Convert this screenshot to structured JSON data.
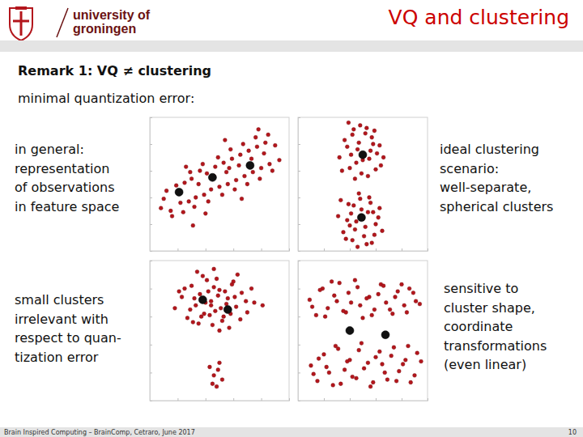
{
  "slide": {
    "logo_lines": [
      "university of",
      "groningen"
    ],
    "title": "VQ and clustering",
    "remark": "Remark 1: VQ ≠ clustering",
    "subtitle": "minimal quantization error:",
    "footer": "Brain Inspired Computing – BrainComp, Cetraro, June 2017",
    "page": 10
  },
  "chart_data": [
    {
      "type": "scatter",
      "annotation": [
        "in general:",
        "representation",
        "of observations",
        "in feature space"
      ],
      "xlim": [
        0,
        10
      ],
      "ylim": [
        0,
        10
      ],
      "xticks": [
        0,
        2,
        4,
        6,
        8,
        10
      ],
      "yticks": [
        0,
        2,
        4,
        6,
        8,
        10
      ],
      "tick_labels": false,
      "series": [
        {
          "color": "#b3161c",
          "marker": "circle",
          "x": [
            0.8,
            1.2,
            1.5,
            1.9,
            2.2,
            2.5,
            2.8,
            3.0,
            3.3,
            3.6,
            3.9,
            4.1,
            4.4,
            4.7,
            5.0,
            5.3,
            5.6,
            5.9,
            6.2,
            6.5,
            6.8,
            7.1,
            7.4,
            7.7,
            8.0,
            8.3,
            8.6,
            9.0,
            9.3,
            1.0,
            1.6,
            2.0,
            2.4,
            2.9,
            3.2,
            3.5,
            3.8,
            4.2,
            4.6,
            4.9,
            5.2,
            5.5,
            5.8,
            6.1,
            6.4,
            6.7,
            7.0,
            7.3,
            7.6,
            7.9,
            8.2,
            8.5,
            8.8,
            2.6,
            4.0,
            5.4,
            6.6,
            3.1,
            7.8,
            5.7
          ],
          "values": [
            3.2,
            4.5,
            3.0,
            4.9,
            3.6,
            5.1,
            3.7,
            5.4,
            4.0,
            6.0,
            4.2,
            5.8,
            4.6,
            6.3,
            4.8,
            6.6,
            5.0,
            6.9,
            5.3,
            7.2,
            5.6,
            7.5,
            5.9,
            7.8,
            6.2,
            8.1,
            6.5,
            7.9,
            6.8,
            3.9,
            2.6,
            4.4,
            2.9,
            5.9,
            3.3,
            5.0,
            6.5,
            3.7,
            5.6,
            7.0,
            4.2,
            5.9,
            7.6,
            4.6,
            6.4,
            8.0,
            5.0,
            6.9,
            8.5,
            5.4,
            7.3,
            8.7,
            6.0,
            6.3,
            2.8,
            8.3,
            3.9,
            1.9,
            9.1,
            6.2
          ]
        },
        {
          "color": "#111111",
          "marker": "circle",
          "x": [
            2.1,
            4.5,
            7.2
          ],
          "values": [
            4.4,
            5.5,
            6.4
          ]
        }
      ]
    },
    {
      "type": "scatter",
      "annotation": [
        "ideal clustering",
        "scenario:",
        "well-separate,",
        "spherical clusters"
      ],
      "xlim": [
        0,
        10
      ],
      "ylim": [
        0,
        10
      ],
      "xticks": [
        0,
        2,
        4,
        6,
        8,
        10
      ],
      "yticks": [
        0,
        2,
        4,
        6,
        8,
        10
      ],
      "tick_labels": false,
      "series": [
        {
          "color": "#b3161c",
          "marker": "circle",
          "x": [
            3.2,
            3.6,
            4.0,
            4.3,
            4.6,
            4.9,
            5.2,
            5.5,
            5.8,
            6.1,
            6.4,
            3.4,
            3.8,
            4.2,
            4.5,
            4.8,
            5.1,
            5.4,
            5.7,
            6.0,
            6.3,
            3.9,
            4.4,
            4.7,
            5.0,
            5.3,
            5.6,
            4.1,
            5.9,
            6.6,
            3.1,
            3.5,
            3.9,
            4.2,
            4.5,
            4.8,
            5.1,
            5.4,
            5.7,
            6.0,
            6.3,
            3.3,
            3.7,
            4.1,
            4.4,
            4.7,
            5.0,
            5.3,
            5.6,
            5.9,
            6.2,
            4.0,
            4.6,
            4.9,
            5.2,
            5.5,
            3.8,
            5.8,
            4.3,
            6.5
          ],
          "values": [
            7.0,
            8.3,
            6.2,
            9.1,
            7.6,
            5.8,
            8.8,
            6.9,
            8.0,
            7.3,
            6.4,
            6.0,
            7.8,
            8.7,
            6.6,
            9.4,
            7.1,
            5.6,
            8.5,
            6.1,
            7.9,
            9.6,
            5.4,
            8.1,
            6.8,
            9.2,
            7.5,
            7.2,
            9.0,
            7.0,
            2.6,
            1.4,
            3.5,
            0.8,
            2.2,
            3.9,
            1.1,
            2.9,
            0.6,
            2.0,
            3.2,
            3.8,
            0.9,
            2.8,
            1.6,
            4.3,
            2.4,
            0.5,
            3.6,
            1.2,
            2.5,
            1.9,
            0.3,
            3.1,
            1.8,
            4.0,
            2.3,
            2.9,
            3.4,
            1.5
          ]
        },
        {
          "color": "#111111",
          "marker": "circle",
          "x": [
            5.0,
            4.9
          ],
          "values": [
            7.2,
            2.5
          ]
        }
      ]
    },
    {
      "type": "scatter",
      "annotation": [
        "small clusters",
        "irrelevant with",
        "respect to quan-",
        "tization error"
      ],
      "xlim": [
        0,
        10
      ],
      "ylim": [
        0,
        10
      ],
      "xticks": [
        0,
        2,
        4,
        6,
        8,
        10
      ],
      "yticks": [
        0,
        2,
        4,
        6,
        8,
        10
      ],
      "tick_labels": false,
      "series": [
        {
          "color": "#b3161c",
          "marker": "circle",
          "x": [
            1.8,
            2.3,
            2.7,
            3.0,
            3.3,
            3.6,
            3.9,
            4.1,
            4.4,
            4.7,
            5.0,
            5.3,
            5.6,
            5.9,
            6.2,
            6.6,
            7.0,
            7.5,
            8.1,
            2.5,
            2.9,
            3.2,
            3.5,
            3.8,
            4.0,
            4.3,
            4.6,
            4.9,
            5.2,
            5.5,
            5.8,
            6.1,
            6.5,
            6.9,
            3.4,
            3.7,
            4.2,
            4.5,
            4.8,
            5.1,
            5.4,
            5.7,
            6.0,
            4.6,
            5.0,
            3.1,
            6.3,
            2.1,
            7.3,
            4.4,
            4.3,
            4.6,
            4.9,
            5.2,
            4.5,
            5.0,
            4.8
          ],
          "values": [
            6.6,
            7.4,
            5.9,
            8.2,
            6.8,
            7.6,
            6.2,
            8.6,
            7.1,
            6.4,
            7.9,
            6.0,
            7.3,
            8.3,
            6.7,
            7.7,
            6.3,
            7.0,
            6.8,
            8.0,
            6.5,
            7.3,
            5.5,
            8.9,
            7.0,
            6.1,
            8.1,
            7.5,
            5.7,
            6.9,
            6.2,
            7.4,
            5.8,
            7.1,
            9.2,
            6.0,
            7.8,
            5.4,
            8.7,
            6.6,
            7.8,
            5.2,
            8.5,
            9.4,
            5.0,
            5.6,
            9.0,
            7.8,
            8.0,
            6.8,
            2.4,
            1.8,
            2.2,
            1.5,
            1.2,
            2.7,
            1.0
          ]
        },
        {
          "color": "#111111",
          "marker": "circle",
          "x": [
            3.8,
            5.6
          ],
          "values": [
            7.2,
            6.5
          ]
        }
      ]
    },
    {
      "type": "scatter",
      "annotation": [
        "sensitive to",
        "cluster shape,",
        "coordinate",
        "transformations",
        "(even linear)"
      ],
      "xlim": [
        0,
        10
      ],
      "ylim": [
        0,
        10
      ],
      "xticks": [
        0,
        2,
        4,
        6,
        8,
        10
      ],
      "yticks": [
        0,
        2,
        4,
        6,
        8,
        10
      ],
      "tick_labels": false,
      "series": [
        {
          "color": "#b3161c",
          "marker": "circle",
          "x": [
            0.9,
            1.4,
            1.9,
            2.3,
            2.8,
            3.2,
            3.7,
            4.1,
            4.6,
            5.0,
            5.5,
            5.9,
            6.4,
            6.8,
            7.3,
            7.7,
            8.2,
            8.6,
            9.1,
            1.1,
            1.7,
            2.1,
            2.6,
            3.0,
            3.5,
            3.9,
            4.4,
            4.8,
            5.3,
            5.7,
            6.2,
            6.6,
            7.1,
            7.5,
            8.0,
            8.4,
            8.9,
            9.4,
            1.0,
            1.5,
            2.0,
            2.4,
            2.9,
            3.3,
            3.8,
            4.2,
            4.7,
            5.1,
            5.6,
            6.0,
            6.5,
            6.9,
            7.4,
            7.8,
            8.3,
            8.7,
            9.2,
            1.2,
            1.6,
            2.2,
            2.7,
            3.1,
            3.6,
            4.0,
            4.5,
            4.9,
            5.4,
            5.8,
            6.3,
            6.7,
            7.2,
            7.6,
            8.1,
            8.5,
            9.0,
            9.5
          ],
          "values": [
            7.2,
            6.1,
            8.0,
            6.6,
            7.5,
            8.4,
            6.3,
            7.0,
            8.1,
            5.9,
            7.4,
            6.5,
            8.3,
            7.0,
            6.2,
            7.8,
            6.8,
            8.0,
            7.1,
            6.7,
            7.9,
            6.0,
            8.5,
            7.1,
            6.4,
            7.7,
            8.6,
            6.8,
            7.3,
            6.1,
            7.6,
            8.2,
            6.5,
            7.4,
            8.3,
            6.3,
            7.7,
            6.9,
            2.5,
            1.4,
            3.3,
            2.0,
            3.9,
            1.2,
            2.8,
            1.7,
            3.6,
            2.3,
            1.0,
            3.1,
            2.6,
            1.5,
            3.8,
            2.1,
            2.9,
            1.3,
            3.4,
            1.9,
            3.0,
            2.4,
            1.1,
            3.7,
            2.2,
            2.9,
            1.6,
            4.1,
            2.7,
            1.3,
            3.5,
            2.0,
            3.2,
            1.4,
            2.6,
            3.9,
            1.8,
            2.8
          ]
        },
        {
          "color": "#111111",
          "marker": "circle",
          "x": [
            4.0,
            6.75
          ],
          "values": [
            5.0,
            4.7
          ]
        }
      ]
    }
  ]
}
